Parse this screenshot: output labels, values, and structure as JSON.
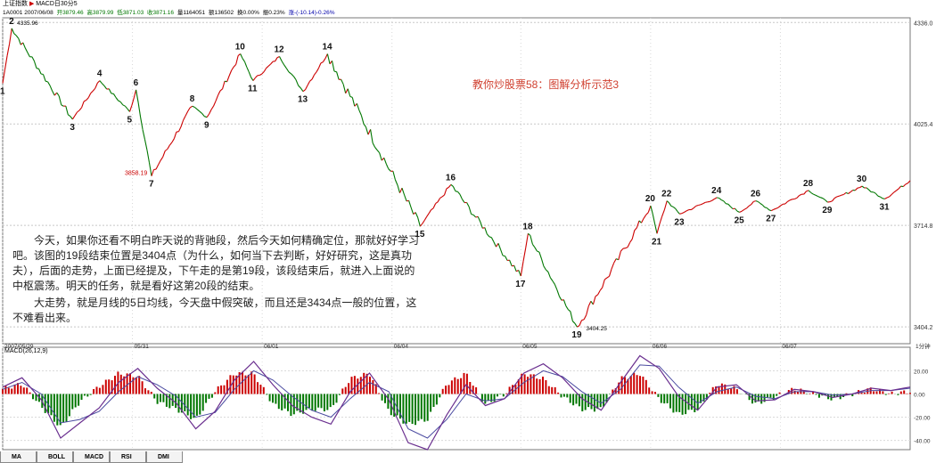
{
  "header": {
    "title": "上证指数",
    "indicator": "MACD日30分5",
    "info": {
      "code_date": "1A0001 2007/06/08",
      "open": "开3879.46",
      "high": "高3879.99",
      "low": "低3871.03",
      "close": "收3871.16",
      "volume": "量1164051",
      "amount": "额136502",
      "turnover": "换0.00%",
      "amplitude": "振0.23%",
      "change": "涨-(-10.14)-0.26%"
    }
  },
  "colors": {
    "up": "#cc0000",
    "down": "#007700",
    "macd_line": "#6a2f8f",
    "signal_line": "#4a4aa0",
    "annotation": "#d04030"
  },
  "chart_data": {
    "type": "line",
    "title": "教你炒股票58：图解分析示范3",
    "price_axis": {
      "ylim": [
        3380,
        4345
      ],
      "ticks": [
        3404.2,
        3714.8,
        4025.4,
        4336.0
      ]
    },
    "x_dates": [
      "2007/05/29",
      "05/31",
      "06/01",
      "06/04",
      "06/05",
      "06/06",
      "06/07"
    ],
    "x_range": [
      0,
      100
    ],
    "date_positions": [
      0,
      14.3,
      28.6,
      42.9,
      57.1,
      71.4,
      85.7
    ],
    "high_label": "4335.96",
    "low_labels": [
      "3858.19",
      "3404.25"
    ],
    "pivots": [
      {
        "n": "1",
        "x": 0.0,
        "y": 4150
      },
      {
        "n": "2",
        "x": 1.0,
        "y": 4318
      },
      {
        "n": "3",
        "x": 7.7,
        "y": 4040
      },
      {
        "n": "4",
        "x": 10.7,
        "y": 4158
      },
      {
        "n": "5",
        "x": 14.0,
        "y": 4063
      },
      {
        "n": "6",
        "x": 14.7,
        "y": 4130
      },
      {
        "n": "7",
        "x": 16.4,
        "y": 3866
      },
      {
        "n": "8",
        "x": 20.9,
        "y": 4080
      },
      {
        "n": "9",
        "x": 22.5,
        "y": 4046
      },
      {
        "n": "10",
        "x": 26.2,
        "y": 4240
      },
      {
        "n": "11",
        "x": 27.6,
        "y": 4158
      },
      {
        "n": "12",
        "x": 30.5,
        "y": 4232
      },
      {
        "n": "13",
        "x": 33.1,
        "y": 4125
      },
      {
        "n": "14",
        "x": 35.8,
        "y": 4240
      },
      {
        "n": "15",
        "x": 46.0,
        "y": 3712
      },
      {
        "n": "16",
        "x": 49.4,
        "y": 3840
      },
      {
        "n": "17",
        "x": 57.1,
        "y": 3560
      },
      {
        "n": "18",
        "x": 57.9,
        "y": 3690
      },
      {
        "n": "19",
        "x": 63.3,
        "y": 3404
      },
      {
        "n": "20",
        "x": 71.4,
        "y": 3775
      },
      {
        "n": "21",
        "x": 72.1,
        "y": 3690
      },
      {
        "n": "22",
        "x": 73.2,
        "y": 3790
      },
      {
        "n": "23",
        "x": 74.6,
        "y": 3750
      },
      {
        "n": "24",
        "x": 78.7,
        "y": 3800
      },
      {
        "n": "25",
        "x": 81.2,
        "y": 3755
      },
      {
        "n": "26",
        "x": 83.0,
        "y": 3790
      },
      {
        "n": "27",
        "x": 84.7,
        "y": 3760
      },
      {
        "n": "28",
        "x": 88.8,
        "y": 3822
      },
      {
        "n": "29",
        "x": 90.9,
        "y": 3786
      },
      {
        "n": "30",
        "x": 94.7,
        "y": 3835
      },
      {
        "n": "31",
        "x": 97.2,
        "y": 3796
      },
      {
        "n": "",
        "x": 100.0,
        "y": 3852
      }
    ],
    "macd": {
      "label": "MACD(26,12,9)",
      "ylim": [
        -48,
        38
      ],
      "ticks": [
        -40.0,
        -20.0,
        0.0,
        20.0
      ],
      "dif_line": [
        6,
        14,
        -5,
        -38,
        -25,
        -12,
        10,
        22,
        5,
        -8,
        -30,
        -15,
        12,
        28,
        8,
        -10,
        -20,
        -26,
        2,
        18,
        -5,
        -42,
        -48,
        -18,
        8,
        -10,
        -4,
        18,
        26,
        14,
        -4,
        -14,
        10,
        33,
        22,
        -2,
        -14,
        6,
        8,
        -6,
        -5,
        4,
        2,
        -3,
        0,
        5,
        3,
        6
      ],
      "dea_line": [
        4,
        10,
        0,
        -25,
        -22,
        -15,
        2,
        15,
        8,
        -2,
        -20,
        -16,
        4,
        20,
        12,
        -2,
        -14,
        -20,
        -4,
        10,
        2,
        -30,
        -38,
        -22,
        0,
        -6,
        -4,
        10,
        20,
        15,
        2,
        -8,
        4,
        25,
        24,
        6,
        -8,
        2,
        6,
        -2,
        -4,
        2,
        2,
        -1,
        0,
        3,
        3,
        5
      ]
    }
  },
  "annotation_text": [
    "今天，如果你还看不明白昨天说的背驰段，然后今天如何精确定位，那就好好学习吧。该图的19段结束位置是3404点（为什么，如何当下去判断，好好研究，这是真功夫），后面的走势，上面已经提及，下午走的是第19段，该段结束后，就进入上面说的中枢震荡。明天的任务，就是看好这第20段的结束。",
    "大走势，就是月线的5日均线，今天盘中假突破，而且还是3434点一般的位置，这不难看出来。"
  ],
  "period_label": "1分钟",
  "tabs": [
    "MA",
    "BOLL",
    "MACD",
    "RSI",
    "DMI"
  ]
}
